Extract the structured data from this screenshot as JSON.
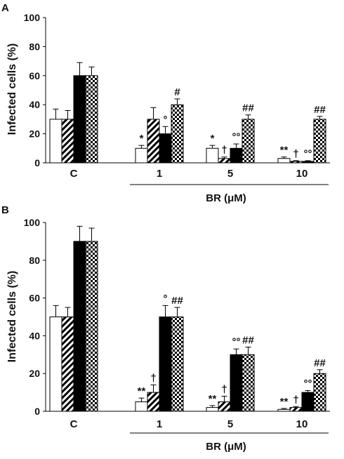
{
  "chart_data": [
    {
      "type": "bar",
      "panel": "A",
      "ylabel": "Infected cells (%)",
      "ylim": [
        0,
        100
      ],
      "yticks": [
        0,
        20,
        40,
        60,
        80,
        100
      ],
      "categories": [
        "C",
        "1",
        "5",
        "10"
      ],
      "group_label": "BR (μM)",
      "series": [
        {
          "pattern": "white",
          "values": [
            30,
            10,
            10,
            3
          ],
          "errors": [
            7,
            2,
            2,
            1
          ]
        },
        {
          "pattern": "diagonal",
          "values": [
            30,
            30,
            3,
            1
          ],
          "errors": [
            6,
            8,
            1,
            0.5
          ]
        },
        {
          "pattern": "black",
          "values": [
            60,
            20,
            10,
            1
          ],
          "errors": [
            9,
            5,
            3,
            0.5
          ]
        },
        {
          "pattern": "checker",
          "values": [
            60,
            40,
            30,
            30
          ],
          "errors": [
            6,
            4,
            3,
            2
          ]
        }
      ],
      "annotations": [
        {
          "category": 1,
          "series": 0,
          "text": "*"
        },
        {
          "category": 1,
          "series": 2,
          "text": "°"
        },
        {
          "category": 1,
          "series": 3,
          "text": "#"
        },
        {
          "category": 2,
          "series": 0,
          "text": "*"
        },
        {
          "category": 2,
          "series": 1,
          "text": "†"
        },
        {
          "category": 2,
          "series": 2,
          "text": "°°"
        },
        {
          "category": 2,
          "series": 3,
          "text": "##"
        },
        {
          "category": 3,
          "series": 0,
          "text": "**"
        },
        {
          "category": 3,
          "series": 1,
          "text": "†"
        },
        {
          "category": 3,
          "series": 2,
          "text": "°°"
        },
        {
          "category": 3,
          "series": 3,
          "text": "##"
        }
      ]
    },
    {
      "type": "bar",
      "panel": "B",
      "ylabel": "Infected cells (%)",
      "ylim": [
        0,
        100
      ],
      "yticks": [
        0,
        20,
        40,
        60,
        80,
        100
      ],
      "categories": [
        "C",
        "1",
        "5",
        "10"
      ],
      "group_label": "BR (μM)",
      "series": [
        {
          "pattern": "white",
          "values": [
            50,
            5,
            2,
            1
          ],
          "errors": [
            6,
            2,
            1,
            0.5
          ]
        },
        {
          "pattern": "diagonal",
          "values": [
            50,
            10,
            5,
            2
          ],
          "errors": [
            5,
            4,
            3,
            0.5
          ]
        },
        {
          "pattern": "black",
          "values": [
            90,
            50,
            30,
            10
          ],
          "errors": [
            8,
            6,
            3,
            1
          ]
        },
        {
          "pattern": "checker",
          "values": [
            90,
            50,
            30,
            20
          ],
          "errors": [
            7,
            5,
            4,
            2
          ]
        }
      ],
      "annotations": [
        {
          "category": 1,
          "series": 0,
          "text": "**"
        },
        {
          "category": 1,
          "series": 1,
          "text": "†"
        },
        {
          "category": 1,
          "series": 2,
          "text": "°"
        },
        {
          "category": 1,
          "series": 3,
          "text": "##"
        },
        {
          "category": 2,
          "series": 0,
          "text": "**"
        },
        {
          "category": 2,
          "series": 1,
          "text": "†"
        },
        {
          "category": 2,
          "series": 2,
          "text": "°°"
        },
        {
          "category": 2,
          "series": 3,
          "text": "##"
        },
        {
          "category": 3,
          "series": 0,
          "text": "**"
        },
        {
          "category": 3,
          "series": 1,
          "text": "†"
        },
        {
          "category": 3,
          "series": 2,
          "text": "°°"
        },
        {
          "category": 3,
          "series": 3,
          "text": "##"
        }
      ]
    }
  ]
}
